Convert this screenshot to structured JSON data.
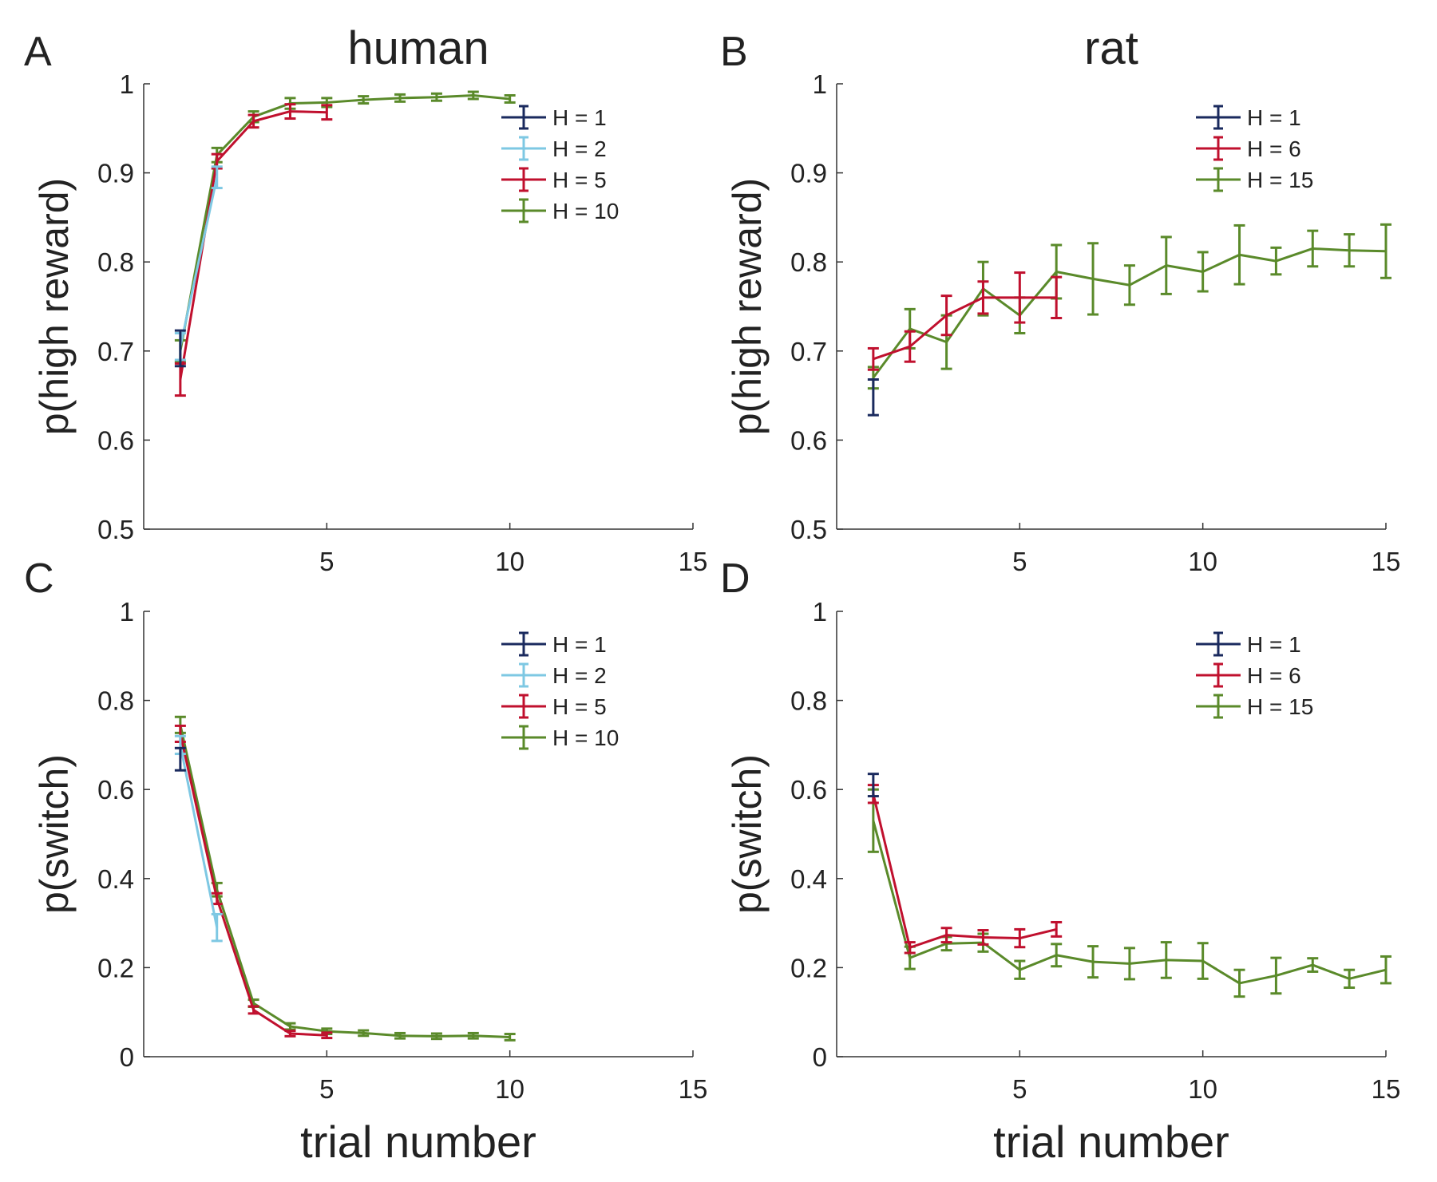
{
  "chart_data": [
    {
      "panel": "A",
      "type": "line",
      "title": "human",
      "xlabel": "",
      "ylabel": "p(high reward)",
      "xlim": [
        0,
        15
      ],
      "ylim": [
        0.5,
        1
      ],
      "xticks": [
        5,
        10,
        15
      ],
      "yticks": [
        0.5,
        0.6,
        0.7,
        0.8,
        0.9,
        1
      ],
      "ytick_labels": [
        "0.5",
        "0.6",
        "0.7",
        "0.8",
        "0.9",
        "1"
      ],
      "legend_position": "top-right",
      "series": [
        {
          "name": "H = 1",
          "color": "#1a2a5e",
          "x": [
            1
          ],
          "y": [
            0.703
          ],
          "err": [
            0.02
          ]
        },
        {
          "name": "H = 2",
          "color": "#7ec8e3",
          "x": [
            1,
            2
          ],
          "y": [
            0.705,
            0.895
          ],
          "err": [
            0.015,
            0.012
          ]
        },
        {
          "name": "H = 5",
          "color": "#c0102e",
          "x": [
            1,
            2,
            3,
            4,
            5
          ],
          "y": [
            0.668,
            0.913,
            0.958,
            0.969,
            0.968
          ],
          "err": [
            0.018,
            0.008,
            0.007,
            0.008,
            0.008
          ]
        },
        {
          "name": "H = 10",
          "color": "#5a8a2a",
          "x": [
            1,
            2,
            3,
            4,
            5,
            6,
            7,
            8,
            9,
            10
          ],
          "y": [
            0.7,
            0.92,
            0.963,
            0.978,
            0.979,
            0.982,
            0.984,
            0.985,
            0.987,
            0.983
          ],
          "err": [
            0.012,
            0.008,
            0.006,
            0.006,
            0.005,
            0.004,
            0.004,
            0.004,
            0.004,
            0.004
          ]
        }
      ]
    },
    {
      "panel": "B",
      "type": "line",
      "title": "rat",
      "xlabel": "",
      "ylabel": "p(high reward)",
      "xlim": [
        0,
        15
      ],
      "ylim": [
        0.5,
        1
      ],
      "xticks": [
        5,
        10,
        15
      ],
      "yticks": [
        0.5,
        0.6,
        0.7,
        0.8,
        0.9,
        1
      ],
      "ytick_labels": [
        "0.5",
        "0.6",
        "0.7",
        "0.8",
        "0.9",
        "1"
      ],
      "legend_position": "top-right",
      "series": [
        {
          "name": "H = 1",
          "color": "#1a2a5e",
          "x": [
            1
          ],
          "y": [
            0.648
          ],
          "err": [
            0.02
          ]
        },
        {
          "name": "H = 6",
          "color": "#c0102e",
          "x": [
            1,
            2,
            3,
            4,
            5,
            6
          ],
          "y": [
            0.691,
            0.705,
            0.74,
            0.76,
            0.76,
            0.76
          ],
          "err": [
            0.012,
            0.017,
            0.022,
            0.018,
            0.028,
            0.023
          ]
        },
        {
          "name": "H = 15",
          "color": "#5a8a2a",
          "x": [
            1,
            2,
            3,
            4,
            5,
            6,
            7,
            8,
            9,
            10,
            11,
            12,
            13,
            14,
            15
          ],
          "y": [
            0.67,
            0.725,
            0.71,
            0.77,
            0.74,
            0.789,
            0.781,
            0.774,
            0.796,
            0.789,
            0.808,
            0.801,
            0.815,
            0.813,
            0.812
          ],
          "err": [
            0.012,
            0.022,
            0.03,
            0.03,
            0.02,
            0.03,
            0.04,
            0.022,
            0.032,
            0.022,
            0.033,
            0.015,
            0.02,
            0.018,
            0.03
          ]
        }
      ]
    },
    {
      "panel": "C",
      "type": "line",
      "title": "",
      "xlabel": "trial number",
      "ylabel": "p(switch)",
      "xlim": [
        0,
        15
      ],
      "ylim": [
        0,
        1
      ],
      "xticks": [
        5,
        10,
        15
      ],
      "yticks": [
        0,
        0.2,
        0.4,
        0.6,
        0.8,
        1
      ],
      "ytick_labels": [
        "0",
        "0.2",
        "0.4",
        "0.6",
        "0.8",
        "1"
      ],
      "legend_position": "top-right",
      "series": [
        {
          "name": "H = 1",
          "color": "#1a2a5e",
          "x": [
            1
          ],
          "y": [
            0.668
          ],
          "err": [
            0.025
          ]
        },
        {
          "name": "H = 2",
          "color": "#7ec8e3",
          "x": [
            1,
            2
          ],
          "y": [
            0.7,
            0.29
          ],
          "err": [
            0.02,
            0.03
          ]
        },
        {
          "name": "H = 5",
          "color": "#c0102e",
          "x": [
            1,
            2,
            3,
            4,
            5
          ],
          "y": [
            0.725,
            0.355,
            0.105,
            0.052,
            0.048
          ],
          "err": [
            0.018,
            0.012,
            0.008,
            0.006,
            0.006
          ]
        },
        {
          "name": "H = 10",
          "color": "#5a8a2a",
          "x": [
            1,
            2,
            3,
            4,
            5,
            6,
            7,
            8,
            9,
            10
          ],
          "y": [
            0.745,
            0.375,
            0.12,
            0.068,
            0.057,
            0.053,
            0.047,
            0.046,
            0.047,
            0.044
          ],
          "err": [
            0.018,
            0.015,
            0.008,
            0.007,
            0.006,
            0.006,
            0.006,
            0.006,
            0.006,
            0.007
          ]
        }
      ]
    },
    {
      "panel": "D",
      "type": "line",
      "title": "",
      "xlabel": "trial number",
      "ylabel": "p(switch)",
      "xlim": [
        0,
        15
      ],
      "ylim": [
        0,
        1
      ],
      "xticks": [
        5,
        10,
        15
      ],
      "yticks": [
        0,
        0.2,
        0.4,
        0.6,
        0.8,
        1
      ],
      "ytick_labels": [
        "0",
        "0.2",
        "0.4",
        "0.6",
        "0.8",
        "1"
      ],
      "legend_position": "top-right",
      "series": [
        {
          "name": "H = 1",
          "color": "#1a2a5e",
          "x": [
            1
          ],
          "y": [
            0.61
          ],
          "err": [
            0.025
          ]
        },
        {
          "name": "H = 6",
          "color": "#c0102e",
          "x": [
            1,
            2,
            3,
            4,
            5,
            6
          ],
          "y": [
            0.59,
            0.245,
            0.273,
            0.268,
            0.266,
            0.286
          ],
          "err": [
            0.02,
            0.012,
            0.016,
            0.016,
            0.02,
            0.016
          ]
        },
        {
          "name": "H = 15",
          "color": "#5a8a2a",
          "x": [
            1,
            2,
            3,
            4,
            5,
            6,
            7,
            8,
            9,
            10,
            11,
            12,
            13,
            14,
            15
          ],
          "y": [
            0.53,
            0.222,
            0.254,
            0.256,
            0.195,
            0.228,
            0.213,
            0.209,
            0.217,
            0.215,
            0.165,
            0.182,
            0.206,
            0.175,
            0.195
          ],
          "err": [
            0.07,
            0.025,
            0.015,
            0.02,
            0.02,
            0.025,
            0.035,
            0.035,
            0.04,
            0.04,
            0.03,
            0.04,
            0.015,
            0.02,
            0.03
          ]
        }
      ]
    }
  ]
}
